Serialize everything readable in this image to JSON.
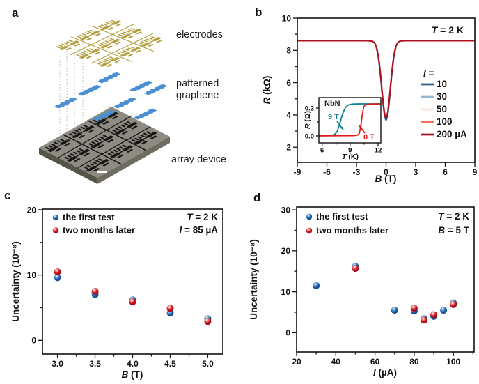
{
  "colors": {
    "gold": "#b3a143",
    "graphene": "#4a8fd2",
    "chipTop": "#8e8c82",
    "chipSideL": "#565349",
    "chipSideR": "#6e6b61",
    "chipPattern": "#161616",
    "guide": "#a8a8a8",
    "text": "#1a1a1a",
    "curveRed": "#ad1420",
    "curveBlue": "#2c618c",
    "insetTeal": "#0e7f8f",
    "insetRed": "#df1b1c",
    "ballBlue": "#1e63af",
    "ballRed": "#d2111d"
  },
  "panels": {
    "a": {
      "letter": "a",
      "labels": {
        "electrodes": "electrodes",
        "graphene": "patterned graphene",
        "device": "array device"
      }
    },
    "b": {
      "letter": "b"
    },
    "c": {
      "letter": "c"
    },
    "d": {
      "letter": "d"
    }
  },
  "chart_data": [
    {
      "id": "b-main",
      "type": "line",
      "xlabel": "B (T)",
      "ylabel": "R (kΩ)",
      "xlim": [
        -9,
        9
      ],
      "ylim": [
        1.06,
        10
      ],
      "xticks": {
        "major": [
          -9,
          -6,
          -3,
          0,
          3,
          6,
          9
        ],
        "labels": [
          "-9",
          "-6",
          "-3",
          "0",
          "3",
          "6",
          "9"
        ],
        "minor": []
      },
      "yticks": {
        "major": [
          2,
          4,
          6,
          8,
          10
        ],
        "labels": [
          "2",
          "4",
          "6",
          "8",
          "10"
        ],
        "minor": [
          3,
          5,
          7,
          9
        ]
      },
      "annotations": [
        "T = 2 K"
      ],
      "legend": {
        "header": "I =",
        "items": [
          {
            "label": "10",
            "color": "#2c618c"
          },
          {
            "label": "30",
            "color": "#92b8d8"
          },
          {
            "label": "50",
            "color": "#fbe3da"
          },
          {
            "label": "100",
            "color": "#f4735a"
          },
          {
            "label": "200 µA",
            "color": "#a11622"
          }
        ]
      },
      "series": [
        {
          "name": "10",
          "color": "#2c618c",
          "width": 2.2,
          "points": [
            [
              -1,
              8.23
            ],
            [
              -0.8,
              7.67
            ],
            [
              -0.6,
              6.67
            ],
            [
              -0.5,
              6.03
            ],
            [
              -0.4,
              5.36
            ],
            [
              -0.3,
              4.71
            ],
            [
              -0.2,
              4.17
            ],
            [
              -0.1,
              3.81
            ],
            [
              0,
              3.68
            ],
            [
              0.1,
              3.81
            ],
            [
              0.2,
              4.17
            ],
            [
              0.3,
              4.71
            ],
            [
              0.4,
              5.36
            ],
            [
              0.5,
              6.03
            ],
            [
              0.6,
              6.67
            ],
            [
              0.8,
              7.67
            ],
            [
              1,
              8.23
            ]
          ]
        },
        {
          "name": "200 µA",
          "color": "#ad1420",
          "width": 2.2,
          "points": [
            [
              -9,
              8.6
            ],
            [
              -2,
              8.6
            ],
            [
              -1.6,
              8.59
            ],
            [
              -1.4,
              8.57
            ],
            [
              -1.2,
              8.49
            ],
            [
              -1.1,
              8.39
            ],
            [
              -1,
              8.25
            ],
            [
              -0.9,
              8.02
            ],
            [
              -0.8,
              7.7
            ],
            [
              -0.7,
              7.27
            ],
            [
              -0.6,
              6.73
            ],
            [
              -0.5,
              6.1
            ],
            [
              -0.4,
              5.45
            ],
            [
              -0.3,
              4.82
            ],
            [
              -0.2,
              4.29
            ],
            [
              -0.1,
              3.94
            ],
            [
              0,
              3.82
            ],
            [
              0.1,
              3.94
            ],
            [
              0.2,
              4.29
            ],
            [
              0.3,
              4.82
            ],
            [
              0.4,
              5.45
            ],
            [
              0.5,
              6.1
            ],
            [
              0.6,
              6.73
            ],
            [
              0.7,
              7.27
            ],
            [
              0.8,
              7.7
            ],
            [
              0.9,
              8.02
            ],
            [
              1,
              8.25
            ],
            [
              1.1,
              8.39
            ],
            [
              1.2,
              8.49
            ],
            [
              1.4,
              8.57
            ],
            [
              1.6,
              8.59
            ],
            [
              2,
              8.6
            ],
            [
              9,
              8.6
            ]
          ]
        }
      ]
    },
    {
      "id": "b-inset",
      "type": "line",
      "xlabel": "T (K)",
      "ylabel": "R (Ω)",
      "xlim": [
        5.65,
        12.3
      ],
      "ylim": [
        -0.05,
        0.275
      ],
      "xticks": {
        "major": [
          6,
          9,
          12
        ],
        "labels": [
          "6",
          "9",
          "12"
        ],
        "minor": [
          7.5,
          10.5
        ]
      },
      "yticks": {
        "major": [
          0,
          0.2
        ],
        "labels": [
          "0.0",
          "0.2"
        ],
        "minor": [
          0.1
        ]
      },
      "texts": [
        {
          "text": "NbN",
          "color": "#1a1a1a"
        },
        {
          "text": "9 T",
          "color": "#0e7f8f"
        },
        {
          "text": "0 T",
          "color": "#df1b1c"
        }
      ],
      "series": [
        {
          "name": "9 T",
          "color": "#0e7f8f",
          "width": 1.8,
          "points": [
            [
              5.65,
              0.001
            ],
            [
              7,
              0.002
            ],
            [
              7.3,
              0.008
            ],
            [
              7.6,
              0.03
            ],
            [
              7.9,
              0.09
            ],
            [
              8.2,
              0.16
            ],
            [
              8.5,
              0.205
            ],
            [
              8.8,
              0.222
            ],
            [
              9.2,
              0.228
            ],
            [
              10,
              0.23
            ],
            [
              12.3,
              0.23
            ]
          ]
        },
        {
          "name": "0 T",
          "color": "#df1b1c",
          "width": 1.8,
          "points": [
            [
              5.65,
              0.001
            ],
            [
              9.4,
              0.002
            ],
            [
              9.8,
              0.006
            ],
            [
              10.0,
              0.02
            ],
            [
              10.15,
              0.07
            ],
            [
              10.3,
              0.15
            ],
            [
              10.45,
              0.205
            ],
            [
              10.6,
              0.222
            ],
            [
              11,
              0.228
            ],
            [
              12.3,
              0.23
            ]
          ]
        }
      ]
    },
    {
      "id": "c",
      "type": "scatter",
      "xlabel": "B (T)",
      "ylabel": "Uncertainty (10⁻⁸)",
      "xlim": [
        2.8,
        5.2
      ],
      "ylim": [
        -2.1,
        20.1
      ],
      "xticks": {
        "major": [
          3.0,
          3.5,
          4.0,
          4.5,
          5.0
        ],
        "labels": [
          "3.0",
          "3.5",
          "4.0",
          "4.5",
          "5.0"
        ],
        "minor": [
          3.25,
          3.75,
          4.25,
          4.75
        ]
      },
      "yticks": {
        "major": [
          0,
          10,
          20
        ],
        "labels": [
          "0",
          "10",
          "20"
        ],
        "minor": [
          5,
          15
        ]
      },
      "annotations": [
        "T = 2 K",
        "I = 85 µA"
      ],
      "series": [
        {
          "name": "the first test",
          "marker": "ball",
          "color": "#1e63af",
          "colorLight": "#8ab6e0",
          "colorDark": "#0f3c74",
          "points": [
            [
              3.0,
              9.6
            ],
            [
              3.5,
              7.0
            ],
            [
              4.0,
              6.2
            ],
            [
              4.5,
              4.2
            ],
            [
              5.0,
              3.3
            ]
          ]
        },
        {
          "name": "two months later",
          "marker": "ball",
          "color": "#d2111d",
          "colorLight": "#f09a92",
          "colorDark": "#8a0a12",
          "points": [
            [
              3.0,
              10.5
            ],
            [
              3.5,
              7.5
            ],
            [
              4.0,
              5.9
            ],
            [
              4.5,
              4.9
            ],
            [
              5.0,
              2.9
            ]
          ]
        }
      ]
    },
    {
      "id": "d",
      "type": "scatter",
      "xlabel": "I (µA)",
      "ylabel": "Uncertainty (10⁻⁸)",
      "xlim": [
        20,
        110.6
      ],
      "ylim": [
        -4.7,
        30.7
      ],
      "xticks": {
        "major": [
          20,
          40,
          60,
          80,
          100
        ],
        "labels": [
          "20",
          "40",
          "60",
          "80",
          "100"
        ],
        "minor": [
          30,
          50,
          70,
          90,
          110
        ]
      },
      "yticks": {
        "major": [
          0,
          10,
          20,
          30
        ],
        "labels": [
          "0",
          "10",
          "20",
          "30"
        ],
        "minor": [
          5,
          15,
          25
        ]
      },
      "annotations": [
        "T = 2 K",
        "B = 5 T"
      ],
      "series": [
        {
          "name": "the first test",
          "marker": "ball",
          "color": "#1e63af",
          "colorLight": "#8ab6e0",
          "colorDark": "#0f3c74",
          "points": [
            [
              30,
              11.5
            ],
            [
              50,
              16.2
            ],
            [
              70,
              5.5
            ],
            [
              80,
              5.3
            ],
            [
              85,
              3.4
            ],
            [
              90,
              4.0
            ],
            [
              95,
              5.5
            ],
            [
              100,
              7.3
            ]
          ]
        },
        {
          "name": "two months later",
          "marker": "ball",
          "color": "#d2111d",
          "colorLight": "#f09a92",
          "colorDark": "#8a0a12",
          "points": [
            [
              50,
              15.7
            ],
            [
              80,
              6.0
            ],
            [
              85,
              3.1
            ],
            [
              90,
              4.4
            ],
            [
              100,
              6.9
            ]
          ]
        }
      ]
    }
  ]
}
